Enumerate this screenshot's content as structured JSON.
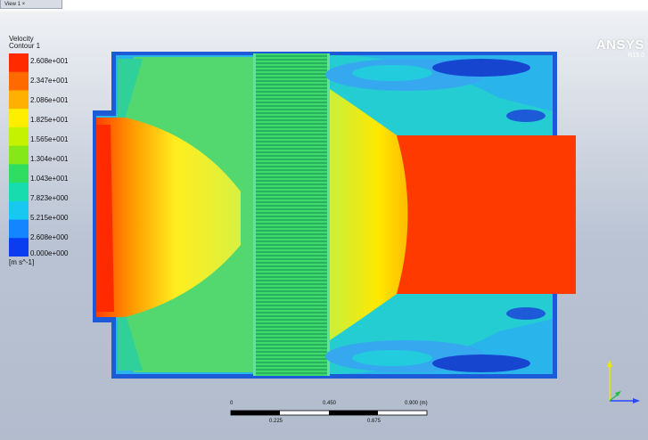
{
  "window": {
    "tab_label": "View 1 ×"
  },
  "legend": {
    "title_line1": "Velocity",
    "title_line2": "Contour 1",
    "levels": [
      "2.608e+001",
      "2.347e+001",
      "2.086e+001",
      "1.825e+001",
      "1.565e+001",
      "1.304e+001",
      "1.043e+001",
      "7.823e+000",
      "5.215e+000",
      "2.608e+000",
      "0.000e+000"
    ],
    "unit": "[m s^-1]",
    "colors": [
      "#ff2a00",
      "#ff6a00",
      "#ffb000",
      "#ffee00",
      "#c4f200",
      "#84e818",
      "#30dd60",
      "#16dcae",
      "#18c8f0",
      "#1484ff",
      "#0a3cf0"
    ]
  },
  "brand": {
    "name": "ANSYS",
    "version": "R15.0"
  },
  "scale_bar": {
    "top_labels": [
      "0",
      "0.450",
      "0.900 (m)"
    ],
    "bottom_labels": [
      "0.225",
      "0.675"
    ]
  },
  "palette": {
    "red": "#ff3a00",
    "orange": "#ff8a00",
    "yellow": "#ffe800",
    "lime": "#c8f03c",
    "green": "#5fdc64",
    "cyan": "#22ccdd",
    "lightblue": "#36a8f0",
    "blue": "#1c5ad8",
    "darkblue": "#0a32c8"
  }
}
